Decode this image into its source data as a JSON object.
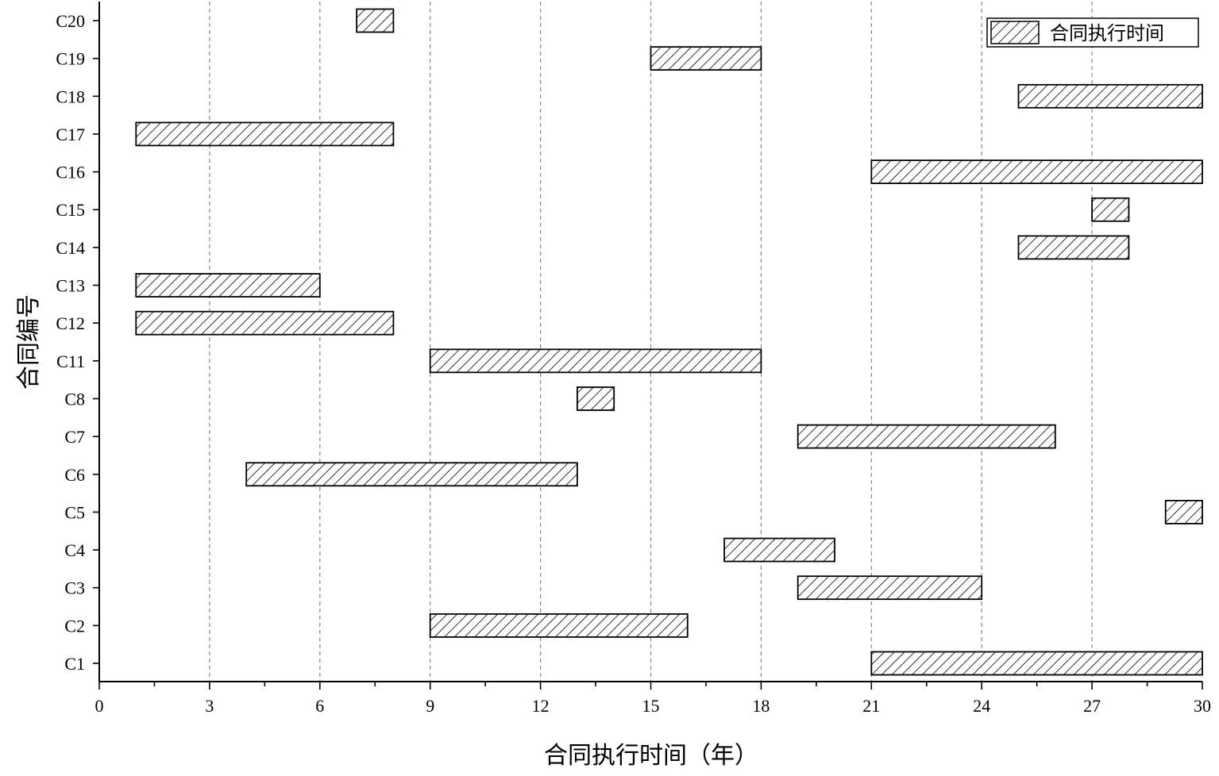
{
  "chart_data": {
    "type": "bar",
    "orientation": "horizontal-range",
    "title": "",
    "xlabel": "合同执行时间（年）",
    "ylabel": "合同编号",
    "xlim": [
      0,
      30
    ],
    "xticks": [
      0,
      3,
      6,
      9,
      12,
      15,
      18,
      21,
      24,
      27,
      30
    ],
    "grid": "vertical dashed",
    "legend": {
      "position": "top-right",
      "entries": [
        "合同执行时间"
      ]
    },
    "categories": [
      "C1",
      "C2",
      "C3",
      "C4",
      "C5",
      "C6",
      "C7",
      "C8",
      "C11",
      "C12",
      "C13",
      "C14",
      "C15",
      "C16",
      "C17",
      "C18",
      "C19",
      "C20"
    ],
    "series": [
      {
        "name": "合同执行时间",
        "ranges": [
          {
            "category": "C1",
            "start": 21,
            "end": 30
          },
          {
            "category": "C2",
            "start": 9,
            "end": 16
          },
          {
            "category": "C3",
            "start": 19,
            "end": 24
          },
          {
            "category": "C4",
            "start": 17,
            "end": 20
          },
          {
            "category": "C5",
            "start": 29,
            "end": 30
          },
          {
            "category": "C6",
            "start": 4,
            "end": 13
          },
          {
            "category": "C7",
            "start": 19,
            "end": 26
          },
          {
            "category": "C8",
            "start": 13,
            "end": 14
          },
          {
            "category": "C11",
            "start": 9,
            "end": 18
          },
          {
            "category": "C12",
            "start": 1,
            "end": 8
          },
          {
            "category": "C13",
            "start": 1,
            "end": 6
          },
          {
            "category": "C14",
            "start": 25,
            "end": 28
          },
          {
            "category": "C15",
            "start": 27,
            "end": 28
          },
          {
            "category": "C16",
            "start": 21,
            "end": 30
          },
          {
            "category": "C17",
            "start": 1,
            "end": 8
          },
          {
            "category": "C18",
            "start": 25,
            "end": 30
          },
          {
            "category": "C19",
            "start": 15,
            "end": 18
          },
          {
            "category": "C20",
            "start": 7,
            "end": 8
          }
        ]
      }
    ],
    "colors": {
      "bar_fill": "#ffffff",
      "hatch": "#000000",
      "grid": "#888888",
      "axis": "#000000"
    }
  }
}
